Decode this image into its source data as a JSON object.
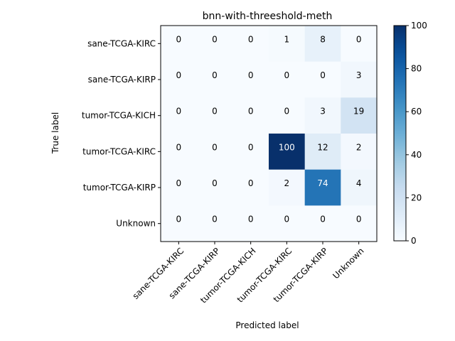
{
  "chart_data": {
    "type": "heatmap",
    "title": "bnn-with-threeshold-meth",
    "xlabel": "Predicted label",
    "ylabel": "True label",
    "rows": [
      "sane-TCGA-KIRC",
      "sane-TCGA-KIRP",
      "tumor-TCGA-KICH",
      "tumor-TCGA-KIRC",
      "tumor-TCGA-KIRP",
      "Unknown"
    ],
    "cols": [
      "sane-TCGA-KIRC",
      "sane-TCGA-KIRP",
      "tumor-TCGA-KICH",
      "tumor-TCGA-KIRC",
      "tumor-TCGA-KIRP",
      "Unknown"
    ],
    "values": [
      [
        0,
        0,
        0,
        1,
        8,
        0
      ],
      [
        0,
        0,
        0,
        0,
        0,
        3
      ],
      [
        0,
        0,
        0,
        0,
        3,
        19
      ],
      [
        0,
        0,
        0,
        100,
        12,
        2
      ],
      [
        0,
        0,
        0,
        2,
        74,
        4
      ],
      [
        0,
        0,
        0,
        0,
        0,
        0
      ]
    ],
    "colormap": "Blues",
    "value_range": [
      0,
      100
    ],
    "colorbar_ticks": [
      0,
      20,
      40,
      60,
      80,
      100
    ],
    "colorbar_tick_labels": [
      "0",
      "20",
      "40",
      "60",
      "80",
      "100"
    ],
    "x_tick_rotation_deg": 45
  }
}
